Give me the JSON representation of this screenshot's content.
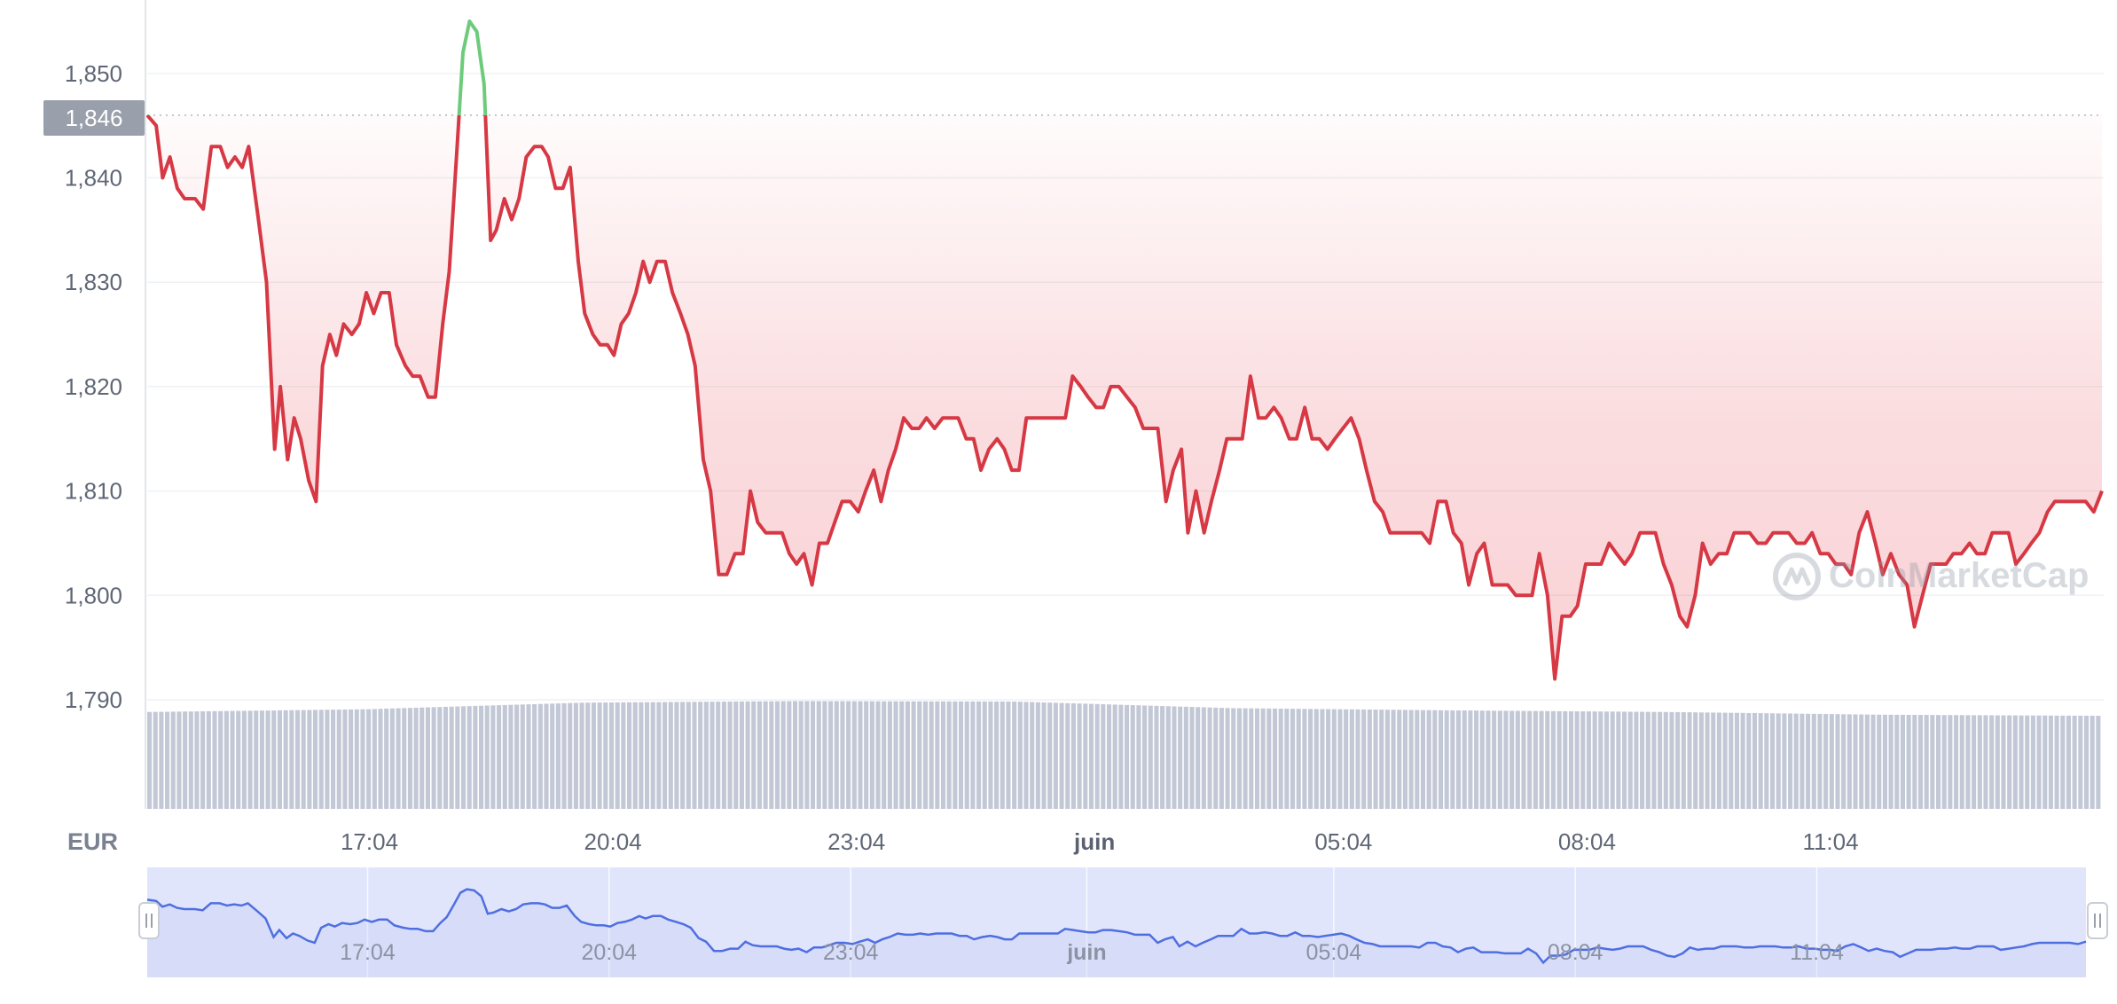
{
  "currency_label": "EUR",
  "current_price_label": "1,846",
  "watermark_text": "CoinMarketCap",
  "colors": {
    "line_down": "#d63844",
    "line_up": "#6ecb7c",
    "area_fill": "#e8515e",
    "volume": "#c3c8d6",
    "navigator_line": "#4f6fe0",
    "navigator_fill": "#e1e5fb",
    "price_tag_bg": "#9aa0ab",
    "axis_text": "#5f6776",
    "grid": "#eff1f4"
  },
  "chart_data": {
    "type": "line",
    "title": "",
    "xlabel": "",
    "ylabel": "",
    "ylim": [
      1780,
      1857
    ],
    "reference_price": 1846,
    "y_ticks": [
      1790,
      1800,
      1810,
      1820,
      1830,
      1840,
      1850
    ],
    "y_tick_labels": [
      "1,790",
      "1,800",
      "1,810",
      "1,820",
      "1,830",
      "1,840",
      "1,850"
    ],
    "x_ticks": [
      {
        "t": 17.067,
        "label": "17:04",
        "bold": false
      },
      {
        "t": 20.067,
        "label": "20:04",
        "bold": false
      },
      {
        "t": 23.067,
        "label": "23:04",
        "bold": false
      },
      {
        "t": 26.0,
        "label": "juin",
        "bold": true
      },
      {
        "t": 29.067,
        "label": "05:04",
        "bold": false
      },
      {
        "t": 32.067,
        "label": "08:04",
        "bold": false
      },
      {
        "t": 35.067,
        "label": "11:04",
        "bold": false
      }
    ],
    "x_range": [
      14.33,
      38.41
    ],
    "series": [
      {
        "points": [
          [
            14.33,
            1846
          ],
          [
            14.44,
            1845
          ],
          [
            14.52,
            1840
          ],
          [
            14.61,
            1842
          ],
          [
            14.7,
            1839
          ],
          [
            14.79,
            1838
          ],
          [
            14.92,
            1838
          ],
          [
            15.02,
            1837
          ],
          [
            15.12,
            1843
          ],
          [
            15.23,
            1843
          ],
          [
            15.32,
            1841
          ],
          [
            15.41,
            1842
          ],
          [
            15.5,
            1841
          ],
          [
            15.58,
            1843
          ],
          [
            15.7,
            1836
          ],
          [
            15.8,
            1830
          ],
          [
            15.9,
            1814
          ],
          [
            15.97,
            1820
          ],
          [
            16.06,
            1813
          ],
          [
            16.14,
            1817
          ],
          [
            16.22,
            1815
          ],
          [
            16.32,
            1811
          ],
          [
            16.41,
            1809
          ],
          [
            16.49,
            1822
          ],
          [
            16.58,
            1825
          ],
          [
            16.66,
            1823
          ],
          [
            16.75,
            1826
          ],
          [
            16.85,
            1825
          ],
          [
            16.94,
            1826
          ],
          [
            17.03,
            1829
          ],
          [
            17.12,
            1827
          ],
          [
            17.21,
            1829
          ],
          [
            17.31,
            1829
          ],
          [
            17.4,
            1824
          ],
          [
            17.51,
            1822
          ],
          [
            17.6,
            1821
          ],
          [
            17.69,
            1821
          ],
          [
            17.79,
            1819
          ],
          [
            17.88,
            1819
          ],
          [
            17.97,
            1826
          ],
          [
            18.05,
            1831
          ],
          [
            18.14,
            1842
          ],
          [
            18.22,
            1852
          ],
          [
            18.3,
            1855
          ],
          [
            18.39,
            1854
          ],
          [
            18.48,
            1849
          ],
          [
            18.56,
            1834
          ],
          [
            18.63,
            1835
          ],
          [
            18.73,
            1838
          ],
          [
            18.82,
            1836
          ],
          [
            18.91,
            1838
          ],
          [
            19.0,
            1842
          ],
          [
            19.1,
            1843
          ],
          [
            19.19,
            1843
          ],
          [
            19.27,
            1842
          ],
          [
            19.36,
            1839
          ],
          [
            19.45,
            1839
          ],
          [
            19.54,
            1841
          ],
          [
            19.64,
            1832
          ],
          [
            19.72,
            1827
          ],
          [
            19.82,
            1825
          ],
          [
            19.91,
            1824
          ],
          [
            20.0,
            1824
          ],
          [
            20.08,
            1823
          ],
          [
            20.17,
            1826
          ],
          [
            20.26,
            1827
          ],
          [
            20.35,
            1829
          ],
          [
            20.44,
            1832
          ],
          [
            20.52,
            1830
          ],
          [
            20.61,
            1832
          ],
          [
            20.71,
            1832
          ],
          [
            20.8,
            1829
          ],
          [
            20.9,
            1827
          ],
          [
            20.99,
            1825
          ],
          [
            21.08,
            1822
          ],
          [
            21.18,
            1813
          ],
          [
            21.27,
            1810
          ],
          [
            21.37,
            1802
          ],
          [
            21.47,
            1802
          ],
          [
            21.57,
            1804
          ],
          [
            21.67,
            1804
          ],
          [
            21.76,
            1810
          ],
          [
            21.85,
            1807
          ],
          [
            21.95,
            1806
          ],
          [
            22.05,
            1806
          ],
          [
            22.15,
            1806
          ],
          [
            22.24,
            1804
          ],
          [
            22.33,
            1803
          ],
          [
            22.42,
            1804
          ],
          [
            22.52,
            1801
          ],
          [
            22.61,
            1805
          ],
          [
            22.71,
            1805
          ],
          [
            22.8,
            1807
          ],
          [
            22.89,
            1809
          ],
          [
            22.99,
            1809
          ],
          [
            23.09,
            1808
          ],
          [
            23.18,
            1810
          ],
          [
            23.28,
            1812
          ],
          [
            23.37,
            1809
          ],
          [
            23.46,
            1812
          ],
          [
            23.55,
            1814
          ],
          [
            23.65,
            1817
          ],
          [
            23.75,
            1816
          ],
          [
            23.84,
            1816
          ],
          [
            23.93,
            1817
          ],
          [
            24.03,
            1816
          ],
          [
            24.13,
            1817
          ],
          [
            24.22,
            1817
          ],
          [
            24.32,
            1817
          ],
          [
            24.42,
            1815
          ],
          [
            24.51,
            1815
          ],
          [
            24.6,
            1812
          ],
          [
            24.7,
            1814
          ],
          [
            24.8,
            1815
          ],
          [
            24.89,
            1814
          ],
          [
            24.98,
            1812
          ],
          [
            25.07,
            1812
          ],
          [
            25.16,
            1817
          ],
          [
            25.26,
            1817
          ],
          [
            25.35,
            1817
          ],
          [
            25.45,
            1817
          ],
          [
            25.54,
            1817
          ],
          [
            25.64,
            1817
          ],
          [
            25.73,
            1821
          ],
          [
            25.83,
            1820
          ],
          [
            25.92,
            1819
          ],
          [
            26.02,
            1818
          ],
          [
            26.11,
            1818
          ],
          [
            26.2,
            1820
          ],
          [
            26.3,
            1820
          ],
          [
            26.4,
            1819
          ],
          [
            26.5,
            1818
          ],
          [
            26.6,
            1816
          ],
          [
            26.69,
            1816
          ],
          [
            26.78,
            1816
          ],
          [
            26.88,
            1809
          ],
          [
            26.97,
            1812
          ],
          [
            27.07,
            1814
          ],
          [
            27.15,
            1806
          ],
          [
            27.25,
            1810
          ],
          [
            27.35,
            1806
          ],
          [
            27.44,
            1809
          ],
          [
            27.54,
            1812
          ],
          [
            27.63,
            1815
          ],
          [
            27.73,
            1815
          ],
          [
            27.82,
            1815
          ],
          [
            27.92,
            1821
          ],
          [
            28.02,
            1817
          ],
          [
            28.11,
            1817
          ],
          [
            28.21,
            1818
          ],
          [
            28.3,
            1817
          ],
          [
            28.4,
            1815
          ],
          [
            28.49,
            1815
          ],
          [
            28.59,
            1818
          ],
          [
            28.68,
            1815
          ],
          [
            28.77,
            1815
          ],
          [
            28.87,
            1814
          ],
          [
            28.96,
            1815
          ],
          [
            29.06,
            1816
          ],
          [
            29.16,
            1817
          ],
          [
            29.26,
            1815
          ],
          [
            29.35,
            1812
          ],
          [
            29.45,
            1809
          ],
          [
            29.55,
            1808
          ],
          [
            29.64,
            1806
          ],
          [
            29.74,
            1806
          ],
          [
            29.84,
            1806
          ],
          [
            29.94,
            1806
          ],
          [
            30.03,
            1806
          ],
          [
            30.13,
            1805
          ],
          [
            30.23,
            1809
          ],
          [
            30.33,
            1809
          ],
          [
            30.42,
            1806
          ],
          [
            30.52,
            1805
          ],
          [
            30.61,
            1801
          ],
          [
            30.71,
            1804
          ],
          [
            30.8,
            1805
          ],
          [
            30.9,
            1801
          ],
          [
            31.0,
            1801
          ],
          [
            31.09,
            1801
          ],
          [
            31.19,
            1800
          ],
          [
            31.29,
            1800
          ],
          [
            31.39,
            1800
          ],
          [
            31.48,
            1804
          ],
          [
            31.58,
            1800
          ],
          [
            31.67,
            1792
          ],
          [
            31.76,
            1798
          ],
          [
            31.86,
            1798
          ],
          [
            31.95,
            1799
          ],
          [
            32.05,
            1803
          ],
          [
            32.14,
            1803
          ],
          [
            32.24,
            1803
          ],
          [
            32.34,
            1805
          ],
          [
            32.43,
            1804
          ],
          [
            32.53,
            1803
          ],
          [
            32.62,
            1804
          ],
          [
            32.72,
            1806
          ],
          [
            32.82,
            1806
          ],
          [
            32.91,
            1806
          ],
          [
            33.01,
            1803
          ],
          [
            33.11,
            1801
          ],
          [
            33.21,
            1798
          ],
          [
            33.3,
            1797
          ],
          [
            33.4,
            1800
          ],
          [
            33.49,
            1805
          ],
          [
            33.59,
            1803
          ],
          [
            33.69,
            1804
          ],
          [
            33.79,
            1804
          ],
          [
            33.88,
            1806
          ],
          [
            33.98,
            1806
          ],
          [
            34.07,
            1806
          ],
          [
            34.17,
            1805
          ],
          [
            34.27,
            1805
          ],
          [
            34.36,
            1806
          ],
          [
            34.46,
            1806
          ],
          [
            34.55,
            1806
          ],
          [
            34.65,
            1805
          ],
          [
            34.75,
            1805
          ],
          [
            34.84,
            1806
          ],
          [
            34.94,
            1804
          ],
          [
            35.04,
            1804
          ],
          [
            35.13,
            1803
          ],
          [
            35.23,
            1803
          ],
          [
            35.32,
            1802
          ],
          [
            35.42,
            1806
          ],
          [
            35.52,
            1808
          ],
          [
            35.62,
            1805
          ],
          [
            35.71,
            1802
          ],
          [
            35.81,
            1804
          ],
          [
            35.91,
            1802
          ],
          [
            36.01,
            1801
          ],
          [
            36.1,
            1797
          ],
          [
            36.2,
            1800
          ],
          [
            36.3,
            1803
          ],
          [
            36.39,
            1803
          ],
          [
            36.49,
            1803
          ],
          [
            36.58,
            1804
          ],
          [
            36.68,
            1804
          ],
          [
            36.78,
            1805
          ],
          [
            36.87,
            1804
          ],
          [
            36.97,
            1804
          ],
          [
            37.06,
            1806
          ],
          [
            37.16,
            1806
          ],
          [
            37.26,
            1806
          ],
          [
            37.35,
            1803
          ],
          [
            37.45,
            1804
          ],
          [
            37.54,
            1805
          ],
          [
            37.64,
            1806
          ],
          [
            37.74,
            1808
          ],
          [
            37.83,
            1809
          ],
          [
            37.93,
            1809
          ],
          [
            38.02,
            1809
          ],
          [
            38.12,
            1809
          ],
          [
            38.21,
            1809
          ],
          [
            38.31,
            1808
          ],
          [
            38.41,
            1810
          ]
        ]
      }
    ],
    "volume_levels": [
      0.55,
      0.6,
      0.72,
      0.75,
      0.74,
      0.62,
      0.58,
      0.55,
      0.5,
      0.48
    ],
    "navigator_x_ticks": [
      "17:04",
      "20:04",
      "23:04",
      "juin",
      "05:04",
      "08:04",
      "11:04"
    ]
  }
}
